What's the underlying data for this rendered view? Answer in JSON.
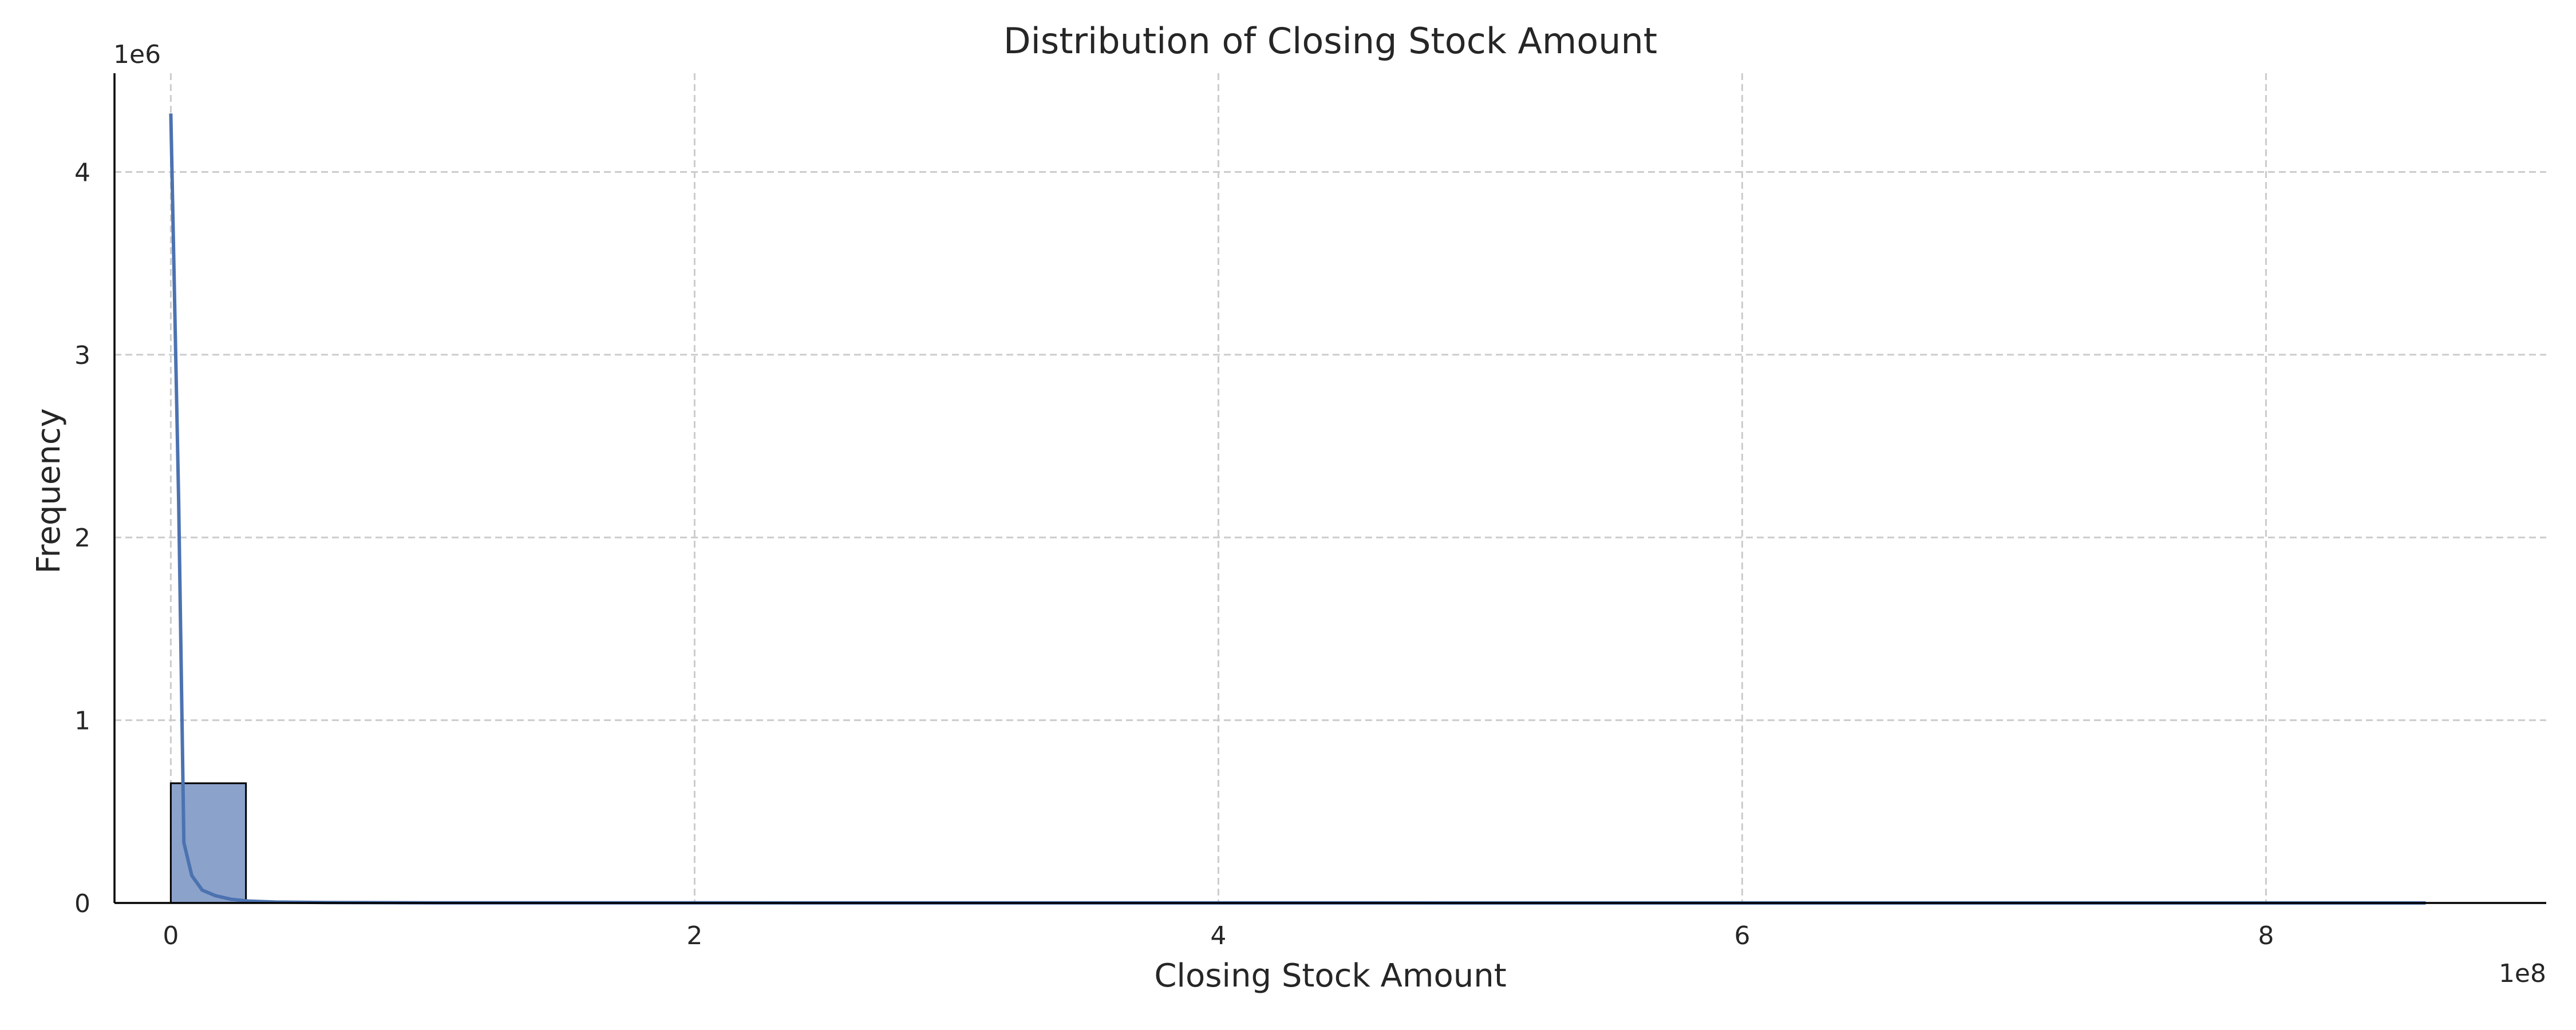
{
  "chart_data": {
    "type": "bar",
    "title": "Distribution of Closing Stock Amount",
    "xlabel": "Closing Stock Amount",
    "ylabel": "Frequency",
    "x_offset_label": "1e8",
    "y_offset_label": "1e6",
    "x_scale": 100000000,
    "y_scale": 1000000,
    "xlim": [
      -21500000,
      907000000
    ],
    "ylim": [
      0,
      4540000
    ],
    "x_ticks": [
      0,
      200000000,
      400000000,
      600000000,
      800000000
    ],
    "x_tick_labels": [
      "0",
      "2",
      "4",
      "6",
      "8"
    ],
    "y_ticks": [
      0,
      1000000,
      2000000,
      3000000,
      4000000
    ],
    "y_tick_labels": [
      "0",
      "1",
      "2",
      "3",
      "4"
    ],
    "grid": true,
    "legend": "none",
    "bins": {
      "edges": [
        0,
        28700000,
        57400000,
        86100000,
        114800000,
        143500000,
        172200000,
        200900000,
        229600000,
        258300000,
        287000000,
        315700000,
        344400000,
        373100000,
        401800000,
        430500000,
        459200000,
        487900000,
        516600000,
        545300000,
        574000000,
        602700000,
        631400000,
        660100000,
        688800000,
        717500000,
        746200000,
        774900000,
        803600000,
        832300000,
        861000000
      ],
      "counts": [
        655000,
        3000,
        700,
        300,
        150,
        80,
        50,
        30,
        20,
        15,
        10,
        8,
        6,
        5,
        4,
        3,
        3,
        2,
        2,
        2,
        1,
        1,
        1,
        1,
        1,
        1,
        1,
        1,
        1,
        1
      ]
    },
    "kde": {
      "x": [
        0,
        3000000,
        5000000,
        8000000,
        12000000,
        17000000,
        23000000,
        30000000,
        40000000,
        60000000,
        100000000,
        200000000,
        400000000,
        600000000,
        861000000
      ],
      "y": [
        4320000,
        2200000,
        330000,
        150000,
        70000,
        40000,
        20000,
        10000,
        5000,
        2500,
        1000,
        500,
        200,
        100,
        50
      ]
    },
    "colors": {
      "bar_fill": "#8ba2cb",
      "bar_edge": "#000000",
      "kde_line": "#4c72b0",
      "grid": "#cccccc",
      "axis": "#000000"
    }
  }
}
